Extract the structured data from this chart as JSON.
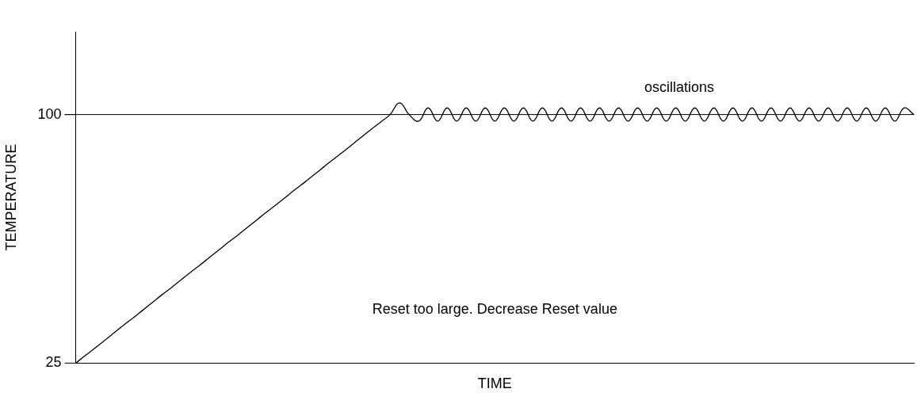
{
  "chart_data": {
    "type": "line",
    "xlabel": "TIME",
    "ylabel": "TEMPERATURE",
    "categories": [
      null,
      null,
      null,
      null,
      null,
      null,
      null,
      null,
      null,
      null,
      null,
      null,
      null,
      null,
      null,
      null,
      null,
      null,
      null,
      null,
      null,
      null,
      null,
      null,
      null,
      null,
      null,
      null,
      null,
      null,
      null,
      null,
      null,
      null,
      null,
      null,
      null,
      null,
      null,
      null,
      null,
      null,
      null,
      null,
      null,
      null,
      null,
      null,
      null,
      null,
      null,
      null,
      null,
      null,
      null,
      null,
      null,
      null,
      null,
      null,
      null,
      null,
      null,
      null,
      null,
      null,
      null,
      null,
      null,
      null,
      null,
      null,
      null,
      null,
      null,
      null,
      null,
      null,
      null,
      null,
      null,
      null,
      null,
      null,
      null,
      null,
      null,
      null,
      null
    ],
    "series": [
      {
        "color": "#000000",
        "values": [
          25,
          27.3,
          29.5,
          31.8,
          34.1,
          36.4,
          38.6,
          40.9,
          43.2,
          45.5,
          47.7,
          50,
          52.3,
          54.5,
          56.8,
          59.1,
          61.4,
          63.6,
          65.9,
          68.2,
          70.5,
          72.7,
          75,
          77.3,
          79.5,
          81.8,
          84.1,
          86.4,
          88.6,
          90.9,
          93.2,
          95.5,
          97.7,
          100,
          103.5,
          100,
          98,
          102,
          98,
          102,
          98,
          102,
          98,
          102,
          98,
          102,
          98,
          102,
          98,
          102,
          98,
          102,
          98,
          102,
          98,
          102,
          98,
          102,
          98,
          102,
          98,
          102,
          98,
          102,
          98,
          102,
          98,
          102,
          98,
          102,
          98,
          102,
          98,
          102,
          98,
          102,
          98,
          102,
          98,
          102,
          98,
          102,
          98,
          102,
          98,
          102,
          98,
          102,
          100
        ]
      }
    ],
    "ylim": [
      25,
      125
    ],
    "yticks": [
      25,
      100
    ],
    "tick_labels": "y",
    "grid": false,
    "marker": "none",
    "line_style": "solid",
    "ref_lines": [
      {
        "axis": "y",
        "value": 100,
        "color": "#000000"
      }
    ],
    "annotations": [
      "oscillations",
      "Reset too large. Decrease Reset value"
    ]
  }
}
